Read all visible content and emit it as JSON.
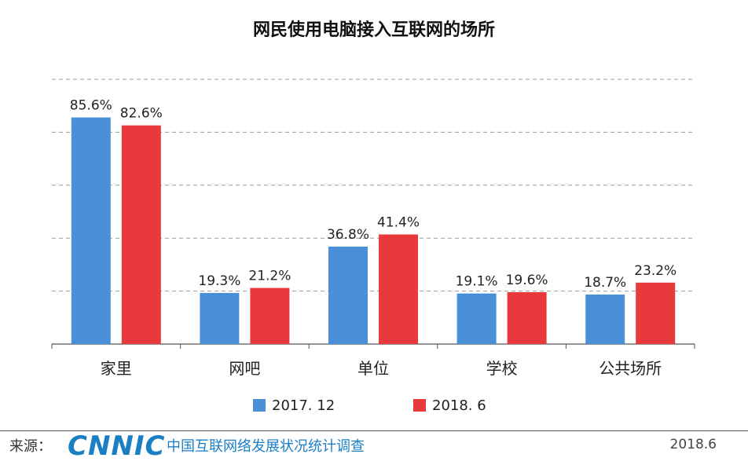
{
  "chart_data": {
    "type": "bar",
    "title": "网民使用电脑接入互联网的场所",
    "categories": [
      "家里",
      "网吧",
      "单位",
      "学校",
      "公共场所"
    ],
    "series": [
      {
        "name": "2017. 12",
        "values": [
          85.6,
          19.3,
          36.8,
          19.1,
          18.7
        ],
        "labels": [
          "85.6%",
          "19.3%",
          "36.8%",
          "19.1%",
          "18.7%"
        ],
        "color": "#4a90d9"
      },
      {
        "name": "2018. 6",
        "values": [
          82.6,
          21.2,
          41.4,
          19.6,
          23.2
        ],
        "labels": [
          "82.6%",
          "21.2%",
          "41.4%",
          "19.6%",
          "23.2%"
        ],
        "color": "#e8393d"
      }
    ],
    "ylim": [
      0,
      100
    ],
    "grid": true,
    "legend": "bottom"
  },
  "footer": {
    "source_label": "来源：",
    "logo_text": "CNNIC",
    "org_name": "中国互联网络发展状况统计调查",
    "date": "2018.6"
  },
  "colors": {
    "series1": "#4a90d9",
    "series2": "#e8393d",
    "logo": "#1b7fc4"
  }
}
